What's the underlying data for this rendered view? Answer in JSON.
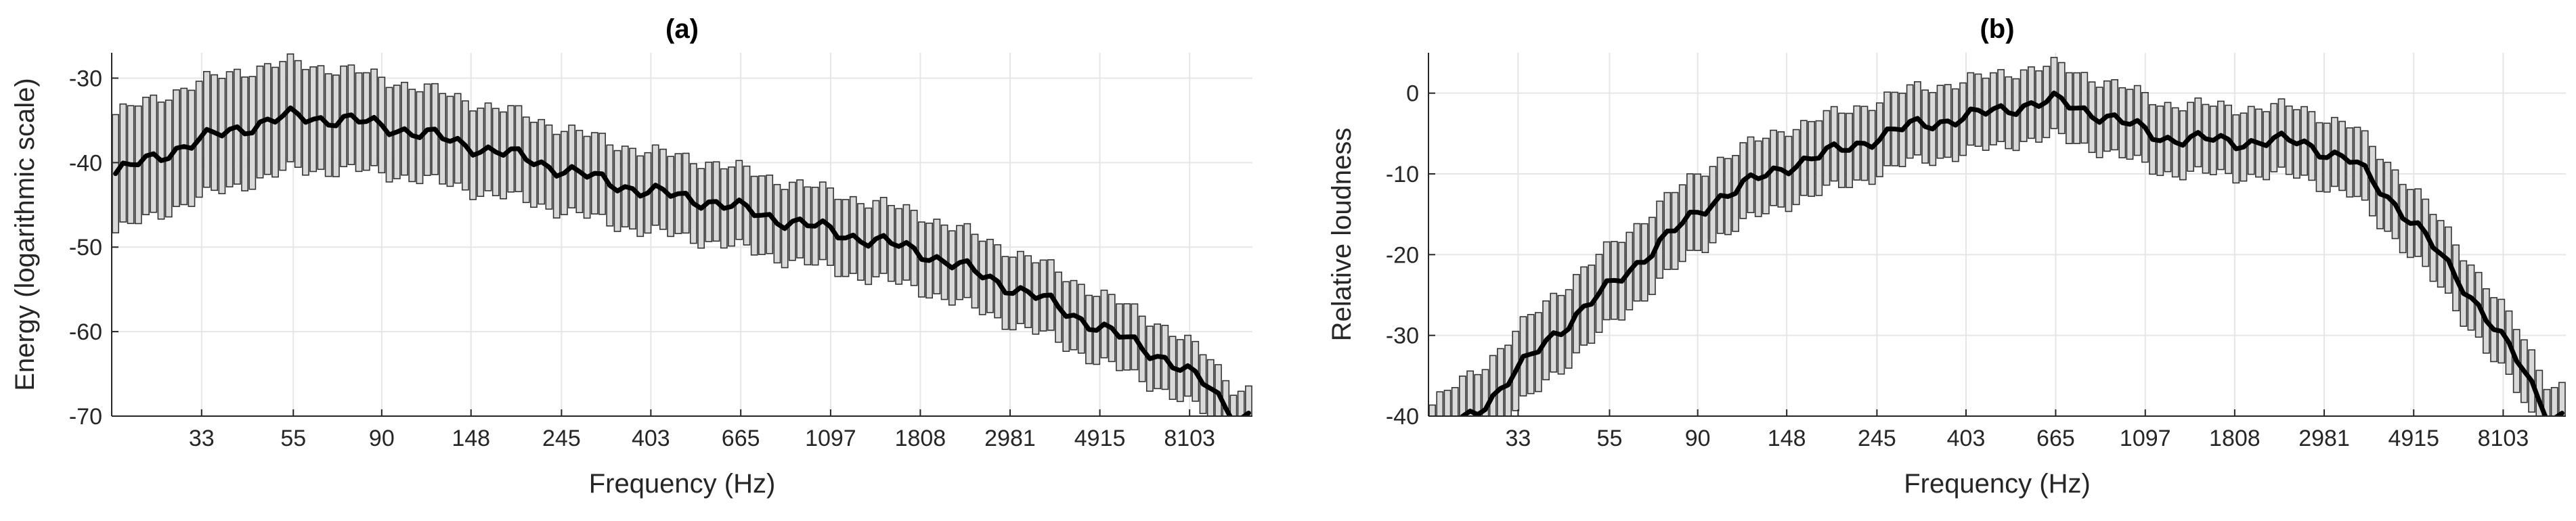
{
  "chart_data": [
    {
      "type": "line",
      "title": "(a)",
      "xlabel": "Frequency (Hz)",
      "ylabel": "Energy (logarithmic scale)",
      "ylim": [
        -70,
        -27
      ],
      "yticks": [
        -30,
        -40,
        -50,
        -60,
        -70
      ],
      "x_tick_labels": [
        "33",
        "55",
        "90",
        "148",
        "245",
        "403",
        "665",
        "1097",
        "1808",
        "2981",
        "4915",
        "8103"
      ],
      "x_range": [
        20,
        11500
      ],
      "x_scale": "log",
      "grid": true,
      "legend": "none",
      "mean_curve": {
        "x": [
          20,
          28,
          40,
          55,
          75,
          100,
          148,
          200,
          300,
          403,
          550,
          800,
          1200,
          1808,
          2600,
          3500,
          4915,
          7000,
          9000,
          10500
        ],
        "y": [
          -41.5,
          -38.5,
          -36,
          -34.5,
          -35,
          -36,
          -38,
          -39.5,
          -42,
          -43.5,
          -44.5,
          -46.5,
          -48.5,
          -50.5,
          -53.5,
          -56,
          -59.5,
          -63,
          -66.5,
          -70
        ]
      },
      "spread": {
        "x": [
          20,
          40,
          100,
          300,
          1000,
          3000,
          7000,
          10500
        ],
        "y": [
          7,
          6.8,
          5.5,
          4.8,
          4.6,
          4.3,
          3.8,
          3.2
        ]
      },
      "colors": {
        "mean_line": "#000000",
        "boxes": "#d9d9d9",
        "box_edge": "#333333"
      }
    },
    {
      "type": "line",
      "title": "(b)",
      "xlabel": "Frequency (Hz)",
      "ylabel": "Relative loudness",
      "ylim": [
        -40,
        5
      ],
      "yticks": [
        0,
        -10,
        -20,
        -30,
        -40
      ],
      "x_tick_labels": [
        "33",
        "55",
        "90",
        "148",
        "245",
        "403",
        "665",
        "1097",
        "1808",
        "2981",
        "4915",
        "8103"
      ],
      "x_range": [
        20,
        11500
      ],
      "x_scale": "log",
      "grid": true,
      "legend": "none",
      "mean_curve": {
        "x": [
          20,
          28,
          40,
          55,
          75,
          100,
          148,
          200,
          300,
          403,
          550,
          665,
          900,
          1200,
          1808,
          2600,
          3500,
          4915,
          7000,
          9000,
          10500
        ],
        "y": [
          -44,
          -38,
          -30,
          -24,
          -18,
          -13,
          -9,
          -7,
          -4,
          -3,
          -1.5,
          -1,
          -3,
          -5.5,
          -6,
          -6,
          -8.5,
          -16,
          -26,
          -34,
          -40
        ]
      },
      "spread": {
        "x": [
          20,
          60,
          200,
          665,
          2000,
          4000,
          10500
        ],
        "y": [
          5,
          4.8,
          4.6,
          4.4,
          4.2,
          4.3,
          3.8
        ]
      },
      "colors": {
        "mean_line": "#000000",
        "boxes": "#d9d9d9",
        "box_edge": "#333333"
      }
    }
  ]
}
